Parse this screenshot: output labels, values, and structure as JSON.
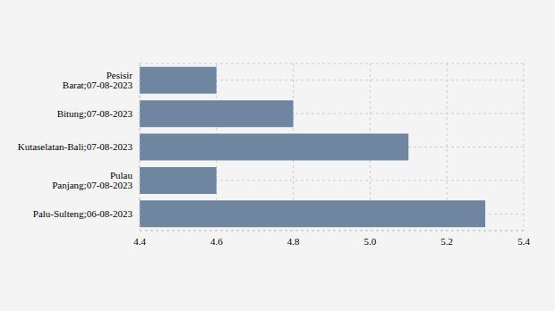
{
  "chart_data": {
    "type": "bar",
    "orientation": "horizontal",
    "categories": [
      "Pesisir Barat;07-08-2023",
      "Bitung;07-08-2023",
      "Kutaselatan-Bali;07-08-2023",
      "Pulau Panjang;07-08-2023",
      "Palu-Sulteng;06-08-2023"
    ],
    "values": [
      4.6,
      4.8,
      5.1,
      4.6,
      5.3
    ],
    "color": "#6f86a0",
    "xlim": [
      4.4,
      5.4
    ],
    "xticks": [
      4.4,
      4.6,
      4.8,
      {
        "value": 5,
        "label": "5.0"
      },
      5.2,
      5.4
    ],
    "grid": true
  }
}
